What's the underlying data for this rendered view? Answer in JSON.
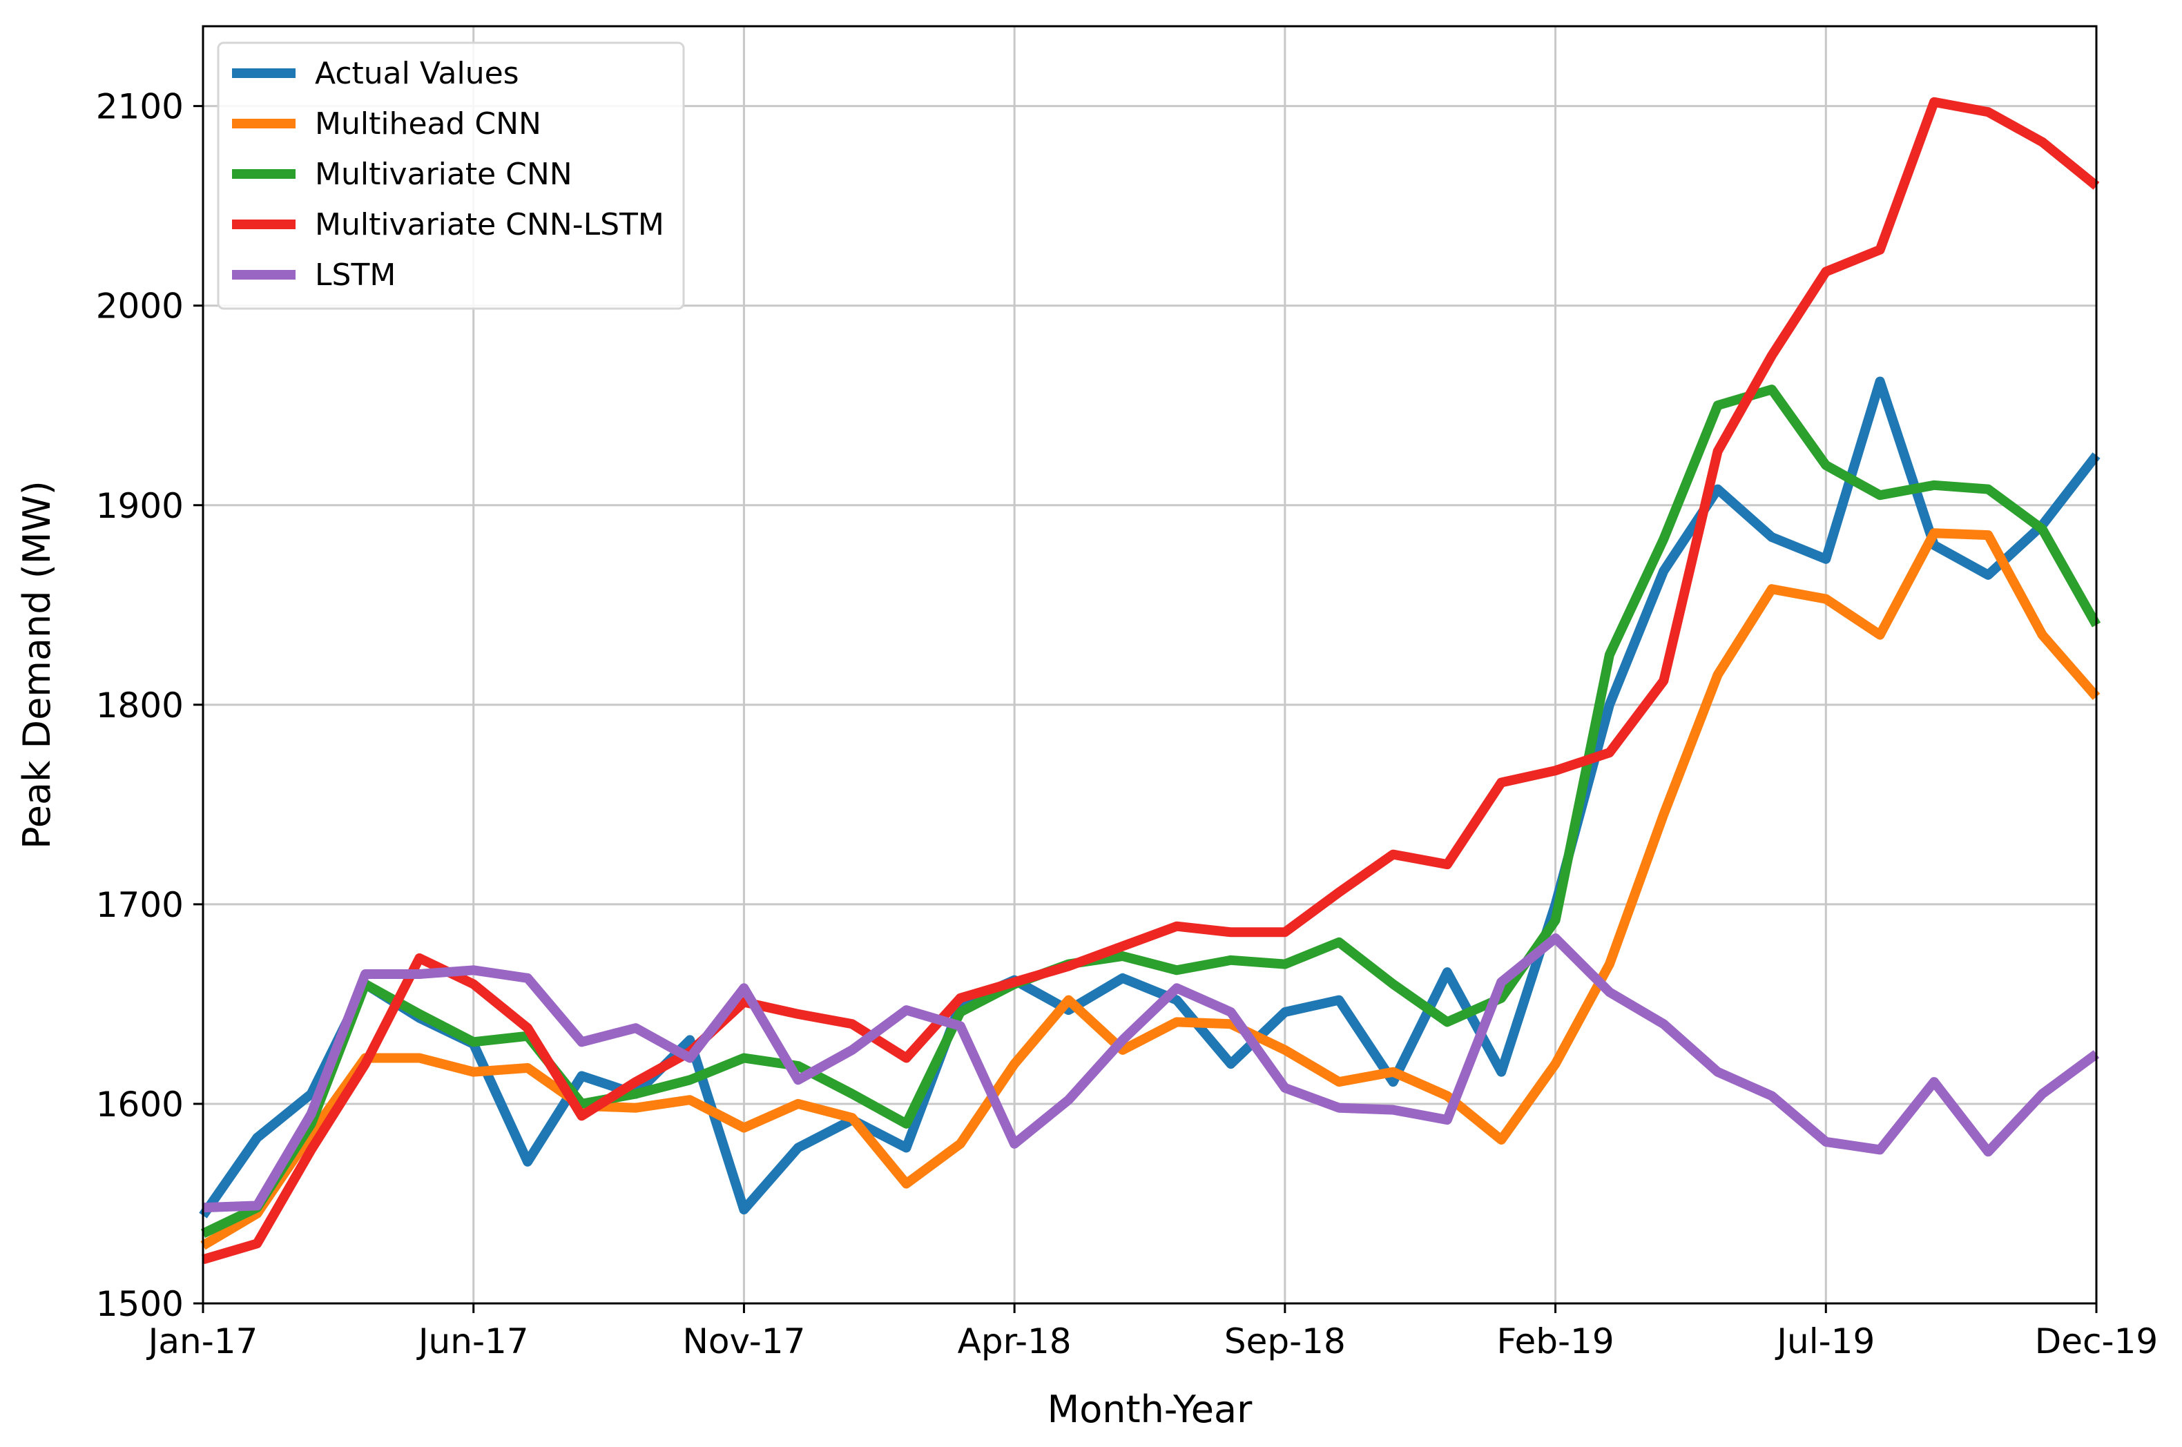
{
  "chart_data": {
    "type": "line",
    "title": "",
    "xlabel": "Month-Year",
    "ylabel": "Peak Demand (MW)",
    "ylim": [
      1500,
      2140
    ],
    "yticks": [
      1500,
      1600,
      1700,
      1800,
      1900,
      2000,
      2100
    ],
    "xtick_indices": [
      0,
      5,
      10,
      15,
      20,
      25,
      30,
      35
    ],
    "xtick_labels": [
      "Jan-17",
      "Jun-17",
      "Nov-17",
      "Apr-18",
      "Sep-18",
      "Feb-19",
      "Jul-19",
      "Dec-19"
    ],
    "grid": true,
    "legend_position": "upper-left",
    "series": [
      {
        "name": "Actual Values",
        "color": "#1f77b4",
        "values": [
          1544,
          1583,
          1605,
          1660,
          1643,
          1630,
          1571,
          1614,
          1605,
          1632,
          1547,
          1578,
          1592,
          1578,
          1650,
          1662,
          1647,
          1663,
          1652,
          1620,
          1646,
          1652,
          1611,
          1666,
          1616,
          1700,
          1800,
          1867,
          1908,
          1884,
          1873,
          1962,
          1880,
          1865,
          1890,
          1925
        ]
      },
      {
        "name": "Multihead CNN",
        "color": "#ff7f0e",
        "values": [
          1529,
          1545,
          1585,
          1623,
          1623,
          1616,
          1618,
          1599,
          1598,
          1602,
          1588,
          1600,
          1593,
          1560,
          1580,
          1620,
          1652,
          1627,
          1641,
          1640,
          1627,
          1611,
          1616,
          1604,
          1582,
          1620,
          1670,
          1745,
          1815,
          1858,
          1853,
          1835,
          1886,
          1885,
          1835,
          1804
        ]
      },
      {
        "name": "Multivariate CNN",
        "color": "#2ca02c",
        "values": [
          1535,
          1548,
          1590,
          1660,
          1645,
          1631,
          1634,
          1600,
          1605,
          1612,
          1623,
          1619,
          1605,
          1590,
          1646,
          1660,
          1670,
          1674,
          1667,
          1672,
          1670,
          1681,
          1660,
          1641,
          1653,
          1692,
          1825,
          1883,
          1950,
          1958,
          1920,
          1905,
          1910,
          1908,
          1888,
          1840
        ]
      },
      {
        "name": "Multivariate CNN-LSTM",
        "color": "#ee2722",
        "values": [
          1522,
          1530,
          1577,
          1620,
          1673,
          1660,
          1638,
          1594,
          1611,
          1626,
          1651,
          1645,
          1640,
          1623,
          1653,
          1661,
          1669,
          1679,
          1689,
          1686,
          1686,
          1706,
          1725,
          1720,
          1761,
          1767,
          1776,
          1812,
          1927,
          1975,
          2017,
          2028,
          2102,
          2097,
          2082,
          2060
        ]
      },
      {
        "name": "LSTM",
        "color": "#9a66c4",
        "values": [
          1548,
          1549,
          1595,
          1665,
          1665,
          1667,
          1663,
          1631,
          1638,
          1623,
          1658,
          1612,
          1627,
          1647,
          1639,
          1580,
          1602,
          1632,
          1658,
          1646,
          1608,
          1598,
          1597,
          1592,
          1661,
          1683,
          1656,
          1640,
          1616,
          1604,
          1581,
          1577,
          1611,
          1576,
          1605,
          1625
        ]
      }
    ]
  }
}
